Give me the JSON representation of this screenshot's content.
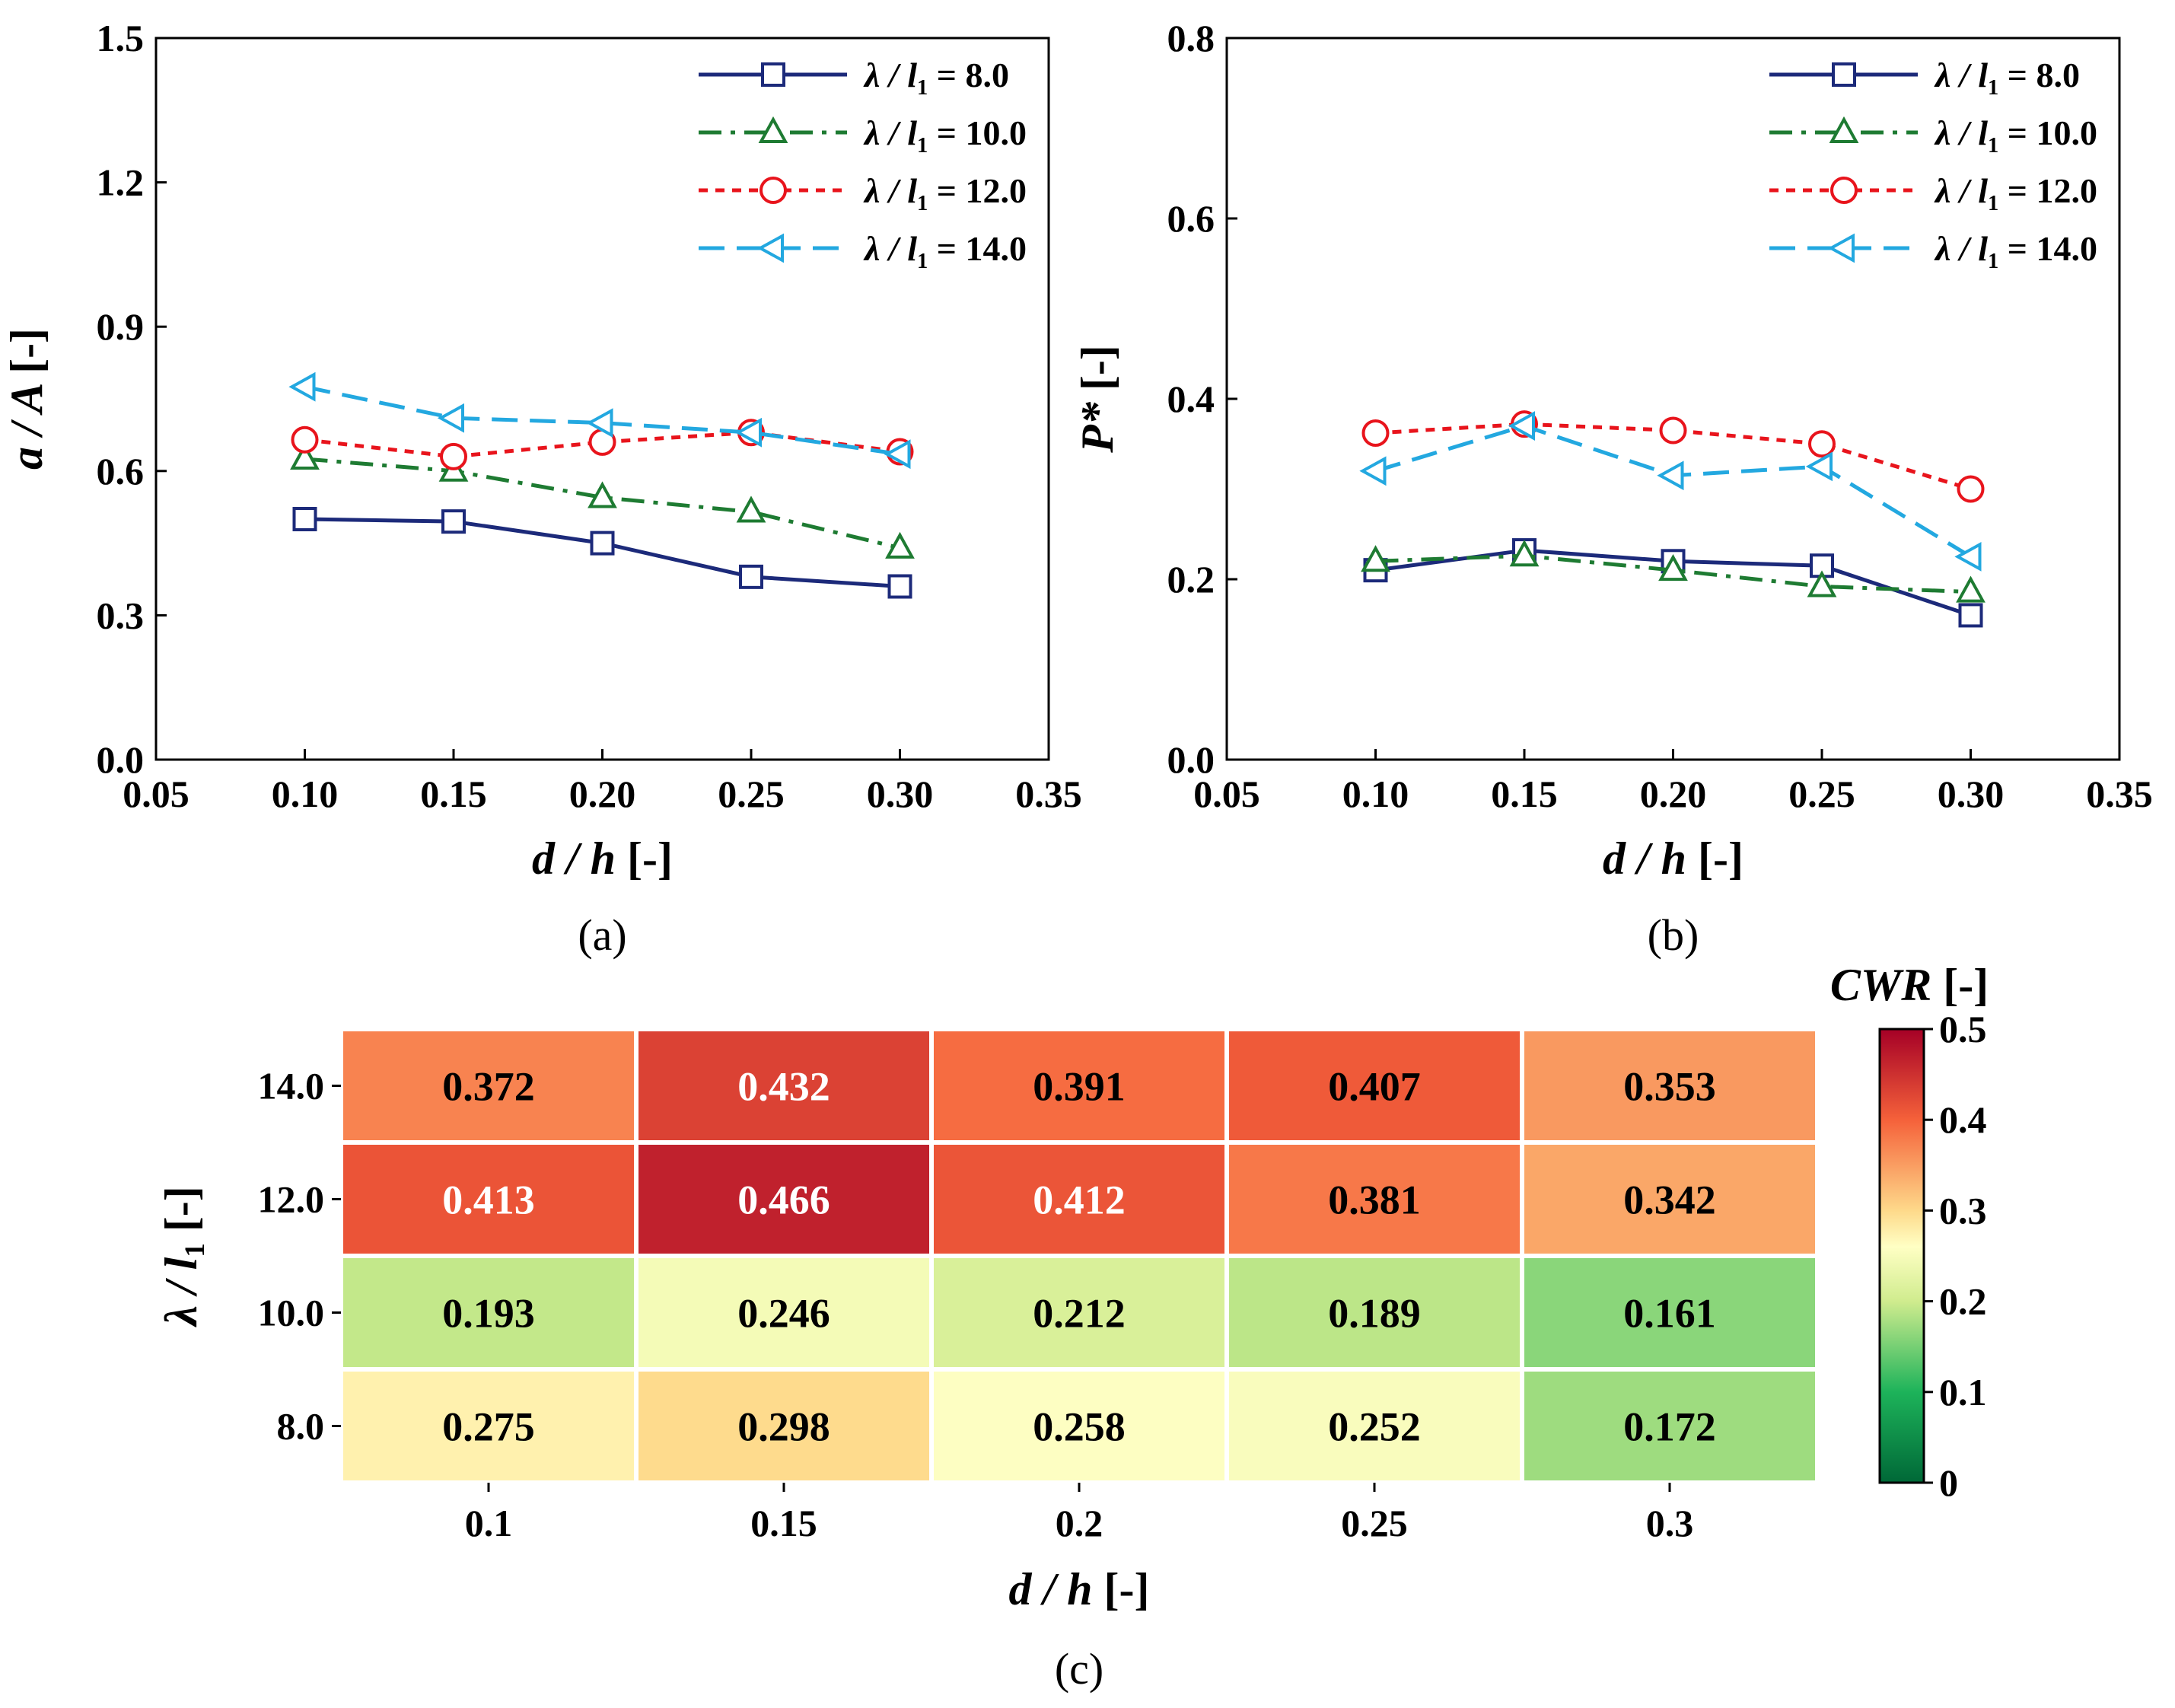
{
  "chart_data": [
    {
      "panel": "(a)",
      "type": "line",
      "xlabel": "d / h [-]",
      "ylabel": "a / A [-]",
      "xlim": [
        0.05,
        0.35
      ],
      "ylim": [
        0.0,
        1.5
      ],
      "xticks": [
        "0.05",
        "0.10",
        "0.15",
        "0.20",
        "0.25",
        "0.30",
        "0.35"
      ],
      "yticks": [
        "0.0",
        "0.3",
        "0.6",
        "0.9",
        "1.2",
        "1.5"
      ],
      "legend_position": "top-right",
      "x": [
        0.1,
        0.15,
        0.2,
        0.25,
        0.3
      ],
      "series": [
        {
          "name": "λ / l1 = 8.0",
          "values": [
            0.5,
            0.495,
            0.45,
            0.38,
            0.36
          ],
          "color": "#1c2a7a",
          "marker": "square",
          "dash": "solid"
        },
        {
          "name": "λ / l1 = 10.0",
          "values": [
            0.625,
            0.6,
            0.545,
            0.515,
            0.44
          ],
          "color": "#1e7b32",
          "marker": "triangle-up",
          "dash": "dashdot"
        },
        {
          "name": "λ / l1 = 12.0",
          "values": [
            0.665,
            0.63,
            0.66,
            0.68,
            0.64
          ],
          "color": "#e8141c",
          "marker": "circle",
          "dash": "dotted"
        },
        {
          "name": "λ / l1 = 14.0",
          "values": [
            0.775,
            0.71,
            0.7,
            0.68,
            0.635
          ],
          "color": "#23a8e0",
          "marker": "triangle-left",
          "dash": "dashed"
        }
      ]
    },
    {
      "panel": "(b)",
      "type": "line",
      "xlabel": "d / h [-]",
      "ylabel": "P* [-]",
      "xlim": [
        0.05,
        0.35
      ],
      "ylim": [
        0.0,
        0.8
      ],
      "xticks": [
        "0.05",
        "0.10",
        "0.15",
        "0.20",
        "0.25",
        "0.30",
        "0.35"
      ],
      "yticks": [
        "0.0",
        "0.2",
        "0.4",
        "0.6",
        "0.8"
      ],
      "legend_position": "top-right",
      "x": [
        0.1,
        0.15,
        0.2,
        0.25,
        0.3
      ],
      "series": [
        {
          "name": "λ / l1 = 8.0",
          "values": [
            0.21,
            0.232,
            0.22,
            0.215,
            0.16
          ],
          "color": "#1c2a7a",
          "marker": "square",
          "dash": "solid"
        },
        {
          "name": "λ / l1 = 10.0",
          "values": [
            0.22,
            0.226,
            0.21,
            0.192,
            0.186
          ],
          "color": "#1e7b32",
          "marker": "triangle-up",
          "dash": "dashdot"
        },
        {
          "name": "λ / l1 = 12.0",
          "values": [
            0.362,
            0.372,
            0.365,
            0.35,
            0.3
          ],
          "color": "#e8141c",
          "marker": "circle",
          "dash": "dotted"
        },
        {
          "name": "λ / l1 = 14.0",
          "values": [
            0.32,
            0.37,
            0.315,
            0.325,
            0.225
          ],
          "color": "#23a8e0",
          "marker": "triangle-left",
          "dash": "dashed"
        }
      ]
    },
    {
      "panel": "(c)",
      "type": "heatmap",
      "xlabel": "d / h [-]",
      "ylabel": "λ / l1 [-]",
      "colorbar_label": "CWR [-]",
      "colorbar_range": [
        0,
        0.5
      ],
      "colorbar_ticks": [
        "0",
        "0.1",
        "0.2",
        "0.3",
        "0.4",
        "0.5"
      ],
      "x_categories": [
        "0.1",
        "0.15",
        "0.2",
        "0.25",
        "0.3"
      ],
      "y_categories": [
        "14.0",
        "12.0",
        "10.0",
        "8.0"
      ],
      "values": [
        [
          "0.372",
          "0.432",
          "0.391",
          "0.407",
          "0.353"
        ],
        [
          "0.413",
          "0.466",
          "0.412",
          "0.381",
          "0.342"
        ],
        [
          "0.193",
          "0.246",
          "0.212",
          "0.189",
          "0.161"
        ],
        [
          "0.275",
          "0.298",
          "0.258",
          "0.252",
          "0.172"
        ]
      ]
    }
  ]
}
